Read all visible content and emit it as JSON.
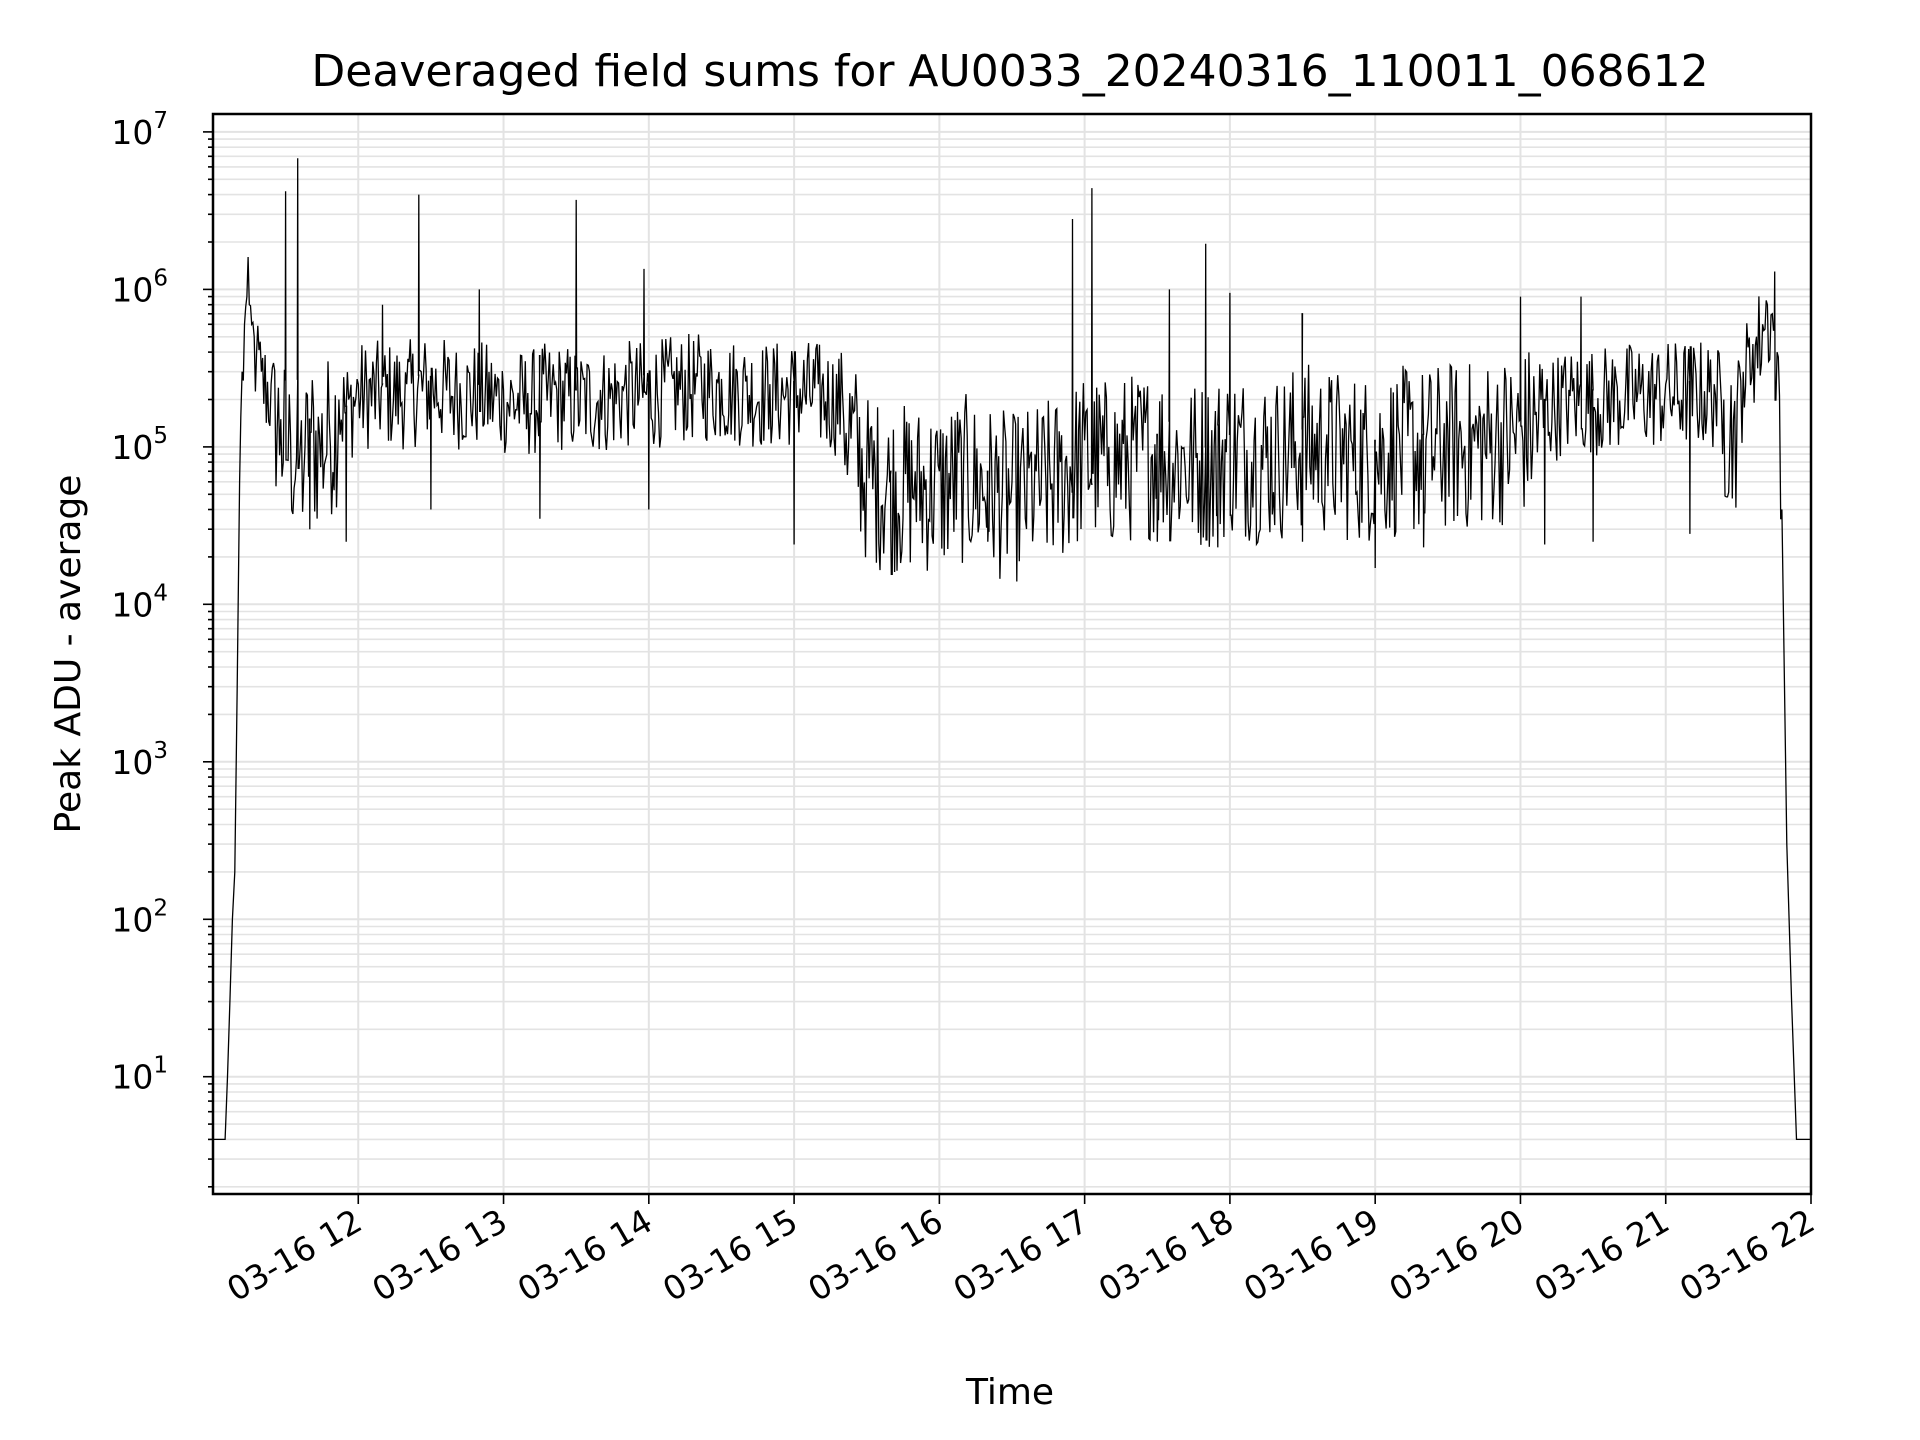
{
  "chart_data": {
    "type": "line",
    "title": "Deaveraged field sums for AU0033_20240316_110011_068612",
    "xlabel": "Time",
    "ylabel": "Peak ADU - average",
    "yscale": "log",
    "ylim": [
      1.8,
      13000000
    ],
    "xlim": [
      "2024-03-16 11:00",
      "2024-03-16 22:00"
    ],
    "grid": true,
    "line_color": "#000000",
    "grid_color": "#e3e3e3",
    "x_ticks": [
      "03-16 12",
      "03-16 13",
      "03-16 14",
      "03-16 15",
      "03-16 16",
      "03-16 17",
      "03-16 18",
      "03-16 19",
      "03-16 20",
      "03-16 21",
      "03-16 22"
    ],
    "y_ticks": [
      {
        "value": 10,
        "base": "10",
        "exp": "1"
      },
      {
        "value": 100,
        "base": "10",
        "exp": "2"
      },
      {
        "value": 1000,
        "base": "10",
        "exp": "3"
      },
      {
        "value": 10000,
        "base": "10",
        "exp": "4"
      },
      {
        "value": 100000,
        "base": "10",
        "exp": "5"
      },
      {
        "value": 1000000,
        "base": "10",
        "exp": "6"
      },
      {
        "value": 10000000,
        "base": "10",
        "exp": "7"
      }
    ],
    "series": [
      {
        "x": [
          "2024-03-16 11:00",
          "2024-03-16 11:05",
          "2024-03-16 11:06",
          "2024-03-16 11:07",
          "2024-03-16 11:08",
          "2024-03-16 11:09",
          "2024-03-16 11:10",
          "2024-03-16 11:11",
          "2024-03-16 11:12",
          "2024-03-16 11:13",
          "2024-03-16 11:14",
          "2024-03-16 11:15",
          "2024-03-16 11:16",
          "2024-03-16 11:17",
          "2024-03-16 11:18",
          "2024-03-16 11:20",
          "2024-03-16 11:24",
          "2024-03-16 11:28",
          "2024-03-16 11:32",
          "2024-03-16 11:36",
          "2024-03-16 11:38",
          "2024-03-16 11:40",
          "2024-03-16 11:44",
          "2024-03-16 11:48",
          "2024-03-16 11:52",
          "2024-03-16 11:56",
          "2024-03-16 12:00",
          "2024-03-16 12:10",
          "2024-03-16 12:20",
          "2024-03-16 12:30",
          "2024-03-16 12:40",
          "2024-03-16 12:50",
          "2024-03-16 13:00",
          "2024-03-16 13:10",
          "2024-03-16 13:20",
          "2024-03-16 13:30",
          "2024-03-16 13:40",
          "2024-03-16 13:50",
          "2024-03-16 14:00",
          "2024-03-16 14:10",
          "2024-03-16 14:20",
          "2024-03-16 14:30",
          "2024-03-16 14:40",
          "2024-03-16 14:50",
          "2024-03-16 15:00",
          "2024-03-16 15:10",
          "2024-03-16 15:20",
          "2024-03-16 15:30",
          "2024-03-16 15:40",
          "2024-03-16 15:50",
          "2024-03-16 16:00",
          "2024-03-16 16:10",
          "2024-03-16 16:20",
          "2024-03-16 16:30",
          "2024-03-16 16:40",
          "2024-03-16 16:50",
          "2024-03-16 17:00",
          "2024-03-16 17:10",
          "2024-03-16 17:20",
          "2024-03-16 17:30",
          "2024-03-16 17:40",
          "2024-03-16 17:50",
          "2024-03-16 18:00",
          "2024-03-16 18:10",
          "2024-03-16 18:20",
          "2024-03-16 18:30",
          "2024-03-16 18:40",
          "2024-03-16 18:50",
          "2024-03-16 19:00",
          "2024-03-16 19:10",
          "2024-03-16 19:20",
          "2024-03-16 19:30",
          "2024-03-16 19:40",
          "2024-03-16 19:50",
          "2024-03-16 20:00",
          "2024-03-16 20:10",
          "2024-03-16 20:20",
          "2024-03-16 20:30",
          "2024-03-16 20:40",
          "2024-03-16 20:50",
          "2024-03-16 21:00",
          "2024-03-16 21:10",
          "2024-03-16 21:20",
          "2024-03-16 21:24",
          "2024-03-16 21:28",
          "2024-03-16 21:32",
          "2024-03-16 21:36",
          "2024-03-16 21:40",
          "2024-03-16 21:42",
          "2024-03-16 21:44",
          "2024-03-16 21:46",
          "2024-03-16 21:48",
          "2024-03-16 21:50",
          "2024-03-16 21:52",
          "2024-03-16 21:54",
          "2024-03-16 21:55",
          "2024-03-16 22:00"
        ],
        "y": [
          4,
          4,
          10,
          30,
          100,
          200,
          3000,
          60000,
          300000,
          600000,
          900000,
          800000,
          600000,
          500000,
          400000,
          300000,
          250000,
          150000,
          120000,
          100000,
          100000,
          150000,
          120000,
          150000,
          200000,
          200000,
          250000,
          250000,
          250000,
          280000,
          250000,
          250000,
          230000,
          220000,
          250000,
          230000,
          230000,
          250000,
          250000,
          270000,
          280000,
          270000,
          260000,
          250000,
          260000,
          250000,
          220000,
          80000,
          70000,
          70000,
          70000,
          80000,
          70000,
          60000,
          70000,
          80000,
          110000,
          100000,
          110000,
          120000,
          100000,
          100000,
          120000,
          110000,
          110000,
          130000,
          120000,
          110000,
          110000,
          120000,
          120000,
          130000,
          130000,
          140000,
          150000,
          200000,
          230000,
          230000,
          240000,
          250000,
          250000,
          260000,
          250000,
          200000,
          150000,
          300000,
          450000,
          600000,
          800000,
          700000,
          400000,
          40000,
          300,
          30,
          4,
          4,
          4
        ],
        "spikes": [
          {
            "x": "2024-03-16 11:30",
            "y": 4200000
          },
          {
            "x": "2024-03-16 11:35",
            "y": 6800000
          },
          {
            "x": "2024-03-16 12:10",
            "y": 800000
          },
          {
            "x": "2024-03-16 12:25",
            "y": 4000000
          },
          {
            "x": "2024-03-16 12:50",
            "y": 1000000
          },
          {
            "x": "2024-03-16 13:30",
            "y": 3700000
          },
          {
            "x": "2024-03-16 13:58",
            "y": 1350000
          },
          {
            "x": "2024-03-16 16:55",
            "y": 2800000
          },
          {
            "x": "2024-03-16 17:03",
            "y": 4400000
          },
          {
            "x": "2024-03-16 17:35",
            "y": 1000000
          },
          {
            "x": "2024-03-16 17:50",
            "y": 1950000
          },
          {
            "x": "2024-03-16 18:00",
            "y": 950000
          },
          {
            "x": "2024-03-16 18:30",
            "y": 700000
          },
          {
            "x": "2024-03-16 20:00",
            "y": 900000
          },
          {
            "x": "2024-03-16 20:25",
            "y": 900000
          },
          {
            "x": "2024-03-16 21:45",
            "y": 1300000
          }
        ],
        "dips": [
          {
            "x": "2024-03-16 11:40",
            "y": 30000
          },
          {
            "x": "2024-03-16 11:55",
            "y": 25000
          },
          {
            "x": "2024-03-16 12:30",
            "y": 40000
          },
          {
            "x": "2024-03-16 13:15",
            "y": 35000
          },
          {
            "x": "2024-03-16 14:00",
            "y": 40000
          },
          {
            "x": "2024-03-16 15:00",
            "y": 24000
          },
          {
            "x": "2024-03-16 15:40",
            "y": 25000
          },
          {
            "x": "2024-03-16 16:20",
            "y": 25000
          },
          {
            "x": "2024-03-16 17:30",
            "y": 25000
          },
          {
            "x": "2024-03-16 17:55",
            "y": 23000
          },
          {
            "x": "2024-03-16 18:30",
            "y": 25000
          },
          {
            "x": "2024-03-16 19:00",
            "y": 17000
          },
          {
            "x": "2024-03-16 19:20",
            "y": 23000
          },
          {
            "x": "2024-03-16 20:10",
            "y": 24000
          },
          {
            "x": "2024-03-16 20:30",
            "y": 25000
          },
          {
            "x": "2024-03-16 21:10",
            "y": 28000
          }
        ]
      }
    ]
  }
}
